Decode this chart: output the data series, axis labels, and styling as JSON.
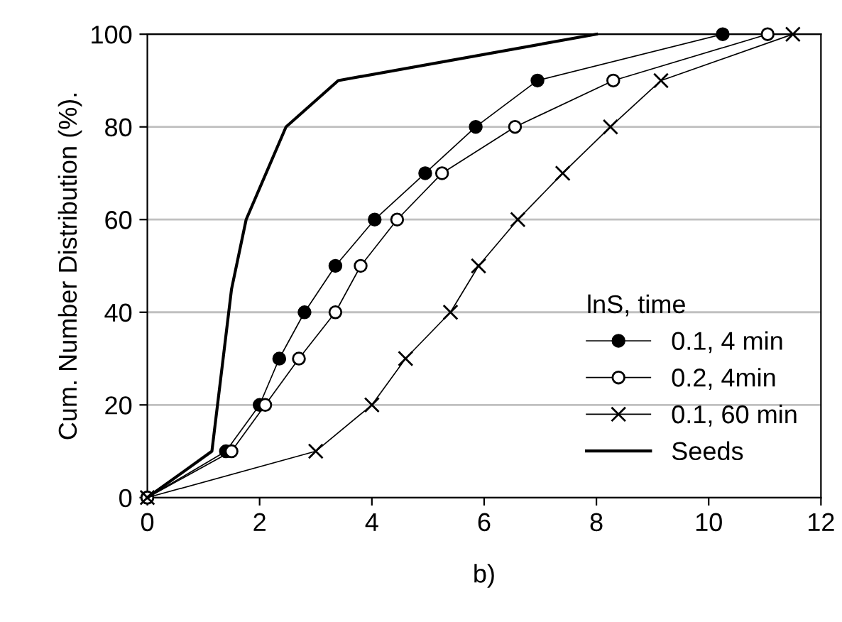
{
  "chart_data": {
    "type": "line",
    "xlabel": "b)",
    "ylabel": "Cum. Number Distribution (%).",
    "legend_title": "lnS, time",
    "legend": "bottom right",
    "grid": "y",
    "xlim": [
      0,
      12
    ],
    "xticks": [
      0,
      2,
      4,
      6,
      8,
      10,
      12
    ],
    "ylim": [
      0,
      100
    ],
    "yticks": [
      0,
      20,
      40,
      60,
      80,
      100
    ],
    "series": [
      {
        "name": "0.1, 4 min",
        "color": "#000000",
        "marker": "circle",
        "x": [
          0,
          1.4,
          2.0,
          2.35,
          2.8,
          3.35,
          4.05,
          4.95,
          5.85,
          6.95,
          10.25
        ],
        "values": [
          0,
          10,
          20,
          30,
          40,
          50,
          60,
          70,
          80,
          90,
          100
        ]
      },
      {
        "name": "0.2, 4min",
        "color": "#ffffff",
        "marker": "circle",
        "x": [
          0,
          1.5,
          2.1,
          2.7,
          3.35,
          3.8,
          4.45,
          5.25,
          6.55,
          8.3,
          11.05
        ],
        "values": [
          0,
          10,
          20,
          30,
          40,
          50,
          60,
          70,
          80,
          90,
          100
        ]
      },
      {
        "name": "0.1, 60 min",
        "color": "#000000",
        "marker": "cross",
        "x": [
          0,
          3.0,
          4.0,
          4.6,
          5.4,
          5.9,
          6.6,
          7.4,
          8.25,
          9.15,
          11.5
        ],
        "values": [
          0,
          10,
          20,
          30,
          40,
          50,
          60,
          70,
          80,
          90,
          100
        ]
      },
      {
        "name": "Seeds",
        "color": "#000000",
        "marker": "none",
        "x": [
          0,
          1.15,
          1.5,
          1.76,
          2.47,
          3.4,
          8.0
        ],
        "values": [
          0,
          10,
          45,
          60,
          80,
          90,
          100
        ]
      }
    ]
  }
}
